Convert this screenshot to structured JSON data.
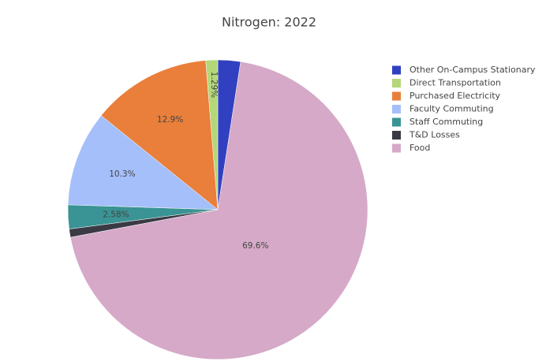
{
  "chart_data": {
    "type": "pie",
    "title": "Nitrogen: 2022",
    "categories": [
      "Other On-Campus Stationary",
      "Direct Transportation",
      "Purchased Electricity",
      "Faculty Commuting",
      "Staff Commuting",
      "T&D Losses",
      "Food"
    ],
    "values": [
      2.44,
      1.29,
      12.9,
      10.3,
      2.58,
      0.89,
      69.6
    ],
    "value_labels": [
      null,
      "1.29%",
      "12.9%",
      "10.3%",
      "2.58%",
      null,
      "69.6%"
    ],
    "colors": [
      "#3040c0",
      "#b4d77a",
      "#e97f3a",
      "#a5bffa",
      "#3a9394",
      "#3a3a45",
      "#d5a9c7"
    ],
    "legend": "top-right"
  }
}
